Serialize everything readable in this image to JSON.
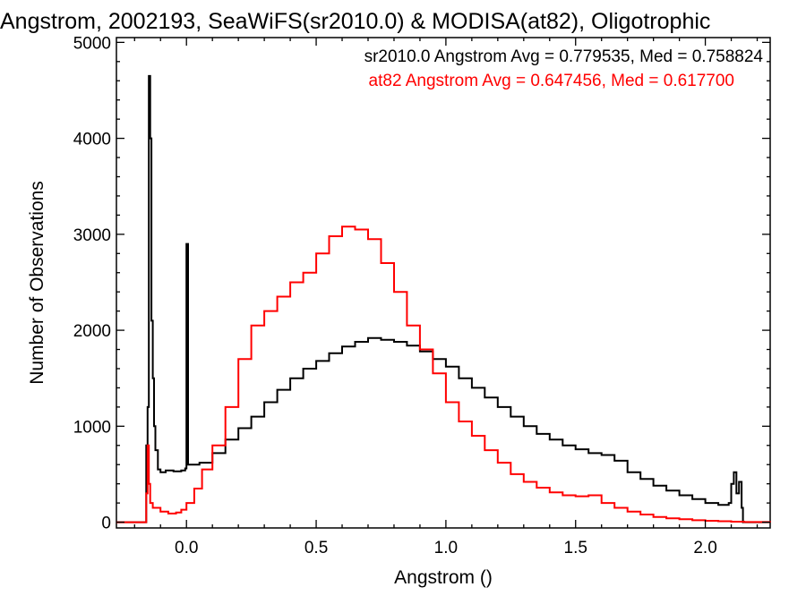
{
  "chart_data": {
    "type": "line",
    "style": "histogram-step",
    "title": "Angstrom, 2002193, SeaWiFS(sr2010.0) & MODISA(at82), Oligotrophic",
    "xlabel": "Angstrom ()",
    "ylabel": "Number of Observations",
    "xlim": [
      -0.27,
      2.25
    ],
    "ylim": [
      -60,
      5050
    ],
    "xticks": [
      0.0,
      0.5,
      1.0,
      1.5,
      2.0
    ],
    "xtick_labels": [
      "0.0",
      "0.5",
      "1.0",
      "1.5",
      "2.0"
    ],
    "yticks": [
      0,
      1000,
      2000,
      3000,
      4000,
      5000
    ],
    "ytick_labels": [
      "0",
      "1000",
      "2000",
      "3000",
      "4000",
      "5000"
    ],
    "grid": false,
    "legend_position": "top-right",
    "annotations": [
      {
        "text": "sr2010.0 Angstrom Avg = 0.779535, Med = 0.758824",
        "color": "#000000"
      },
      {
        "text": "at82 Angstrom Avg = 0.647456, Med = 0.617700",
        "color": "#ff0000"
      }
    ],
    "series": [
      {
        "name": "sr2010.0",
        "color": "#000000",
        "points": [
          [
            -0.27,
            0
          ],
          [
            -0.16,
            0
          ],
          [
            -0.155,
            800
          ],
          [
            -0.15,
            1200
          ],
          [
            -0.145,
            4650
          ],
          [
            -0.14,
            4000
          ],
          [
            -0.135,
            2100
          ],
          [
            -0.13,
            1500
          ],
          [
            -0.125,
            1000
          ],
          [
            -0.12,
            750
          ],
          [
            -0.11,
            550
          ],
          [
            -0.1,
            520
          ],
          [
            -0.08,
            540
          ],
          [
            -0.05,
            530
          ],
          [
            -0.02,
            540
          ],
          [
            -0.005,
            560
          ],
          [
            0.0,
            2900
          ],
          [
            0.006,
            600
          ],
          [
            0.05,
            620
          ],
          [
            0.1,
            720
          ],
          [
            0.15,
            860
          ],
          [
            0.2,
            980
          ],
          [
            0.25,
            1100
          ],
          [
            0.3,
            1250
          ],
          [
            0.35,
            1380
          ],
          [
            0.4,
            1500
          ],
          [
            0.45,
            1600
          ],
          [
            0.5,
            1680
          ],
          [
            0.55,
            1760
          ],
          [
            0.6,
            1830
          ],
          [
            0.65,
            1880
          ],
          [
            0.7,
            1920
          ],
          [
            0.75,
            1900
          ],
          [
            0.8,
            1880
          ],
          [
            0.85,
            1840
          ],
          [
            0.9,
            1780
          ],
          [
            0.95,
            1700
          ],
          [
            1.0,
            1620
          ],
          [
            1.05,
            1500
          ],
          [
            1.1,
            1400
          ],
          [
            1.15,
            1300
          ],
          [
            1.2,
            1200
          ],
          [
            1.25,
            1100
          ],
          [
            1.3,
            1000
          ],
          [
            1.35,
            920
          ],
          [
            1.4,
            860
          ],
          [
            1.45,
            800
          ],
          [
            1.5,
            760
          ],
          [
            1.55,
            720
          ],
          [
            1.6,
            700
          ],
          [
            1.65,
            640
          ],
          [
            1.7,
            520
          ],
          [
            1.75,
            450
          ],
          [
            1.8,
            380
          ],
          [
            1.85,
            330
          ],
          [
            1.9,
            280
          ],
          [
            1.95,
            240
          ],
          [
            2.0,
            200
          ],
          [
            2.05,
            180
          ],
          [
            2.09,
            200
          ],
          [
            2.1,
            400
          ],
          [
            2.11,
            520
          ],
          [
            2.12,
            300
          ],
          [
            2.13,
            420
          ],
          [
            2.14,
            150
          ],
          [
            2.145,
            0
          ],
          [
            2.25,
            0
          ]
        ]
      },
      {
        "name": "at82",
        "color": "#ff0000",
        "points": [
          [
            -0.27,
            0
          ],
          [
            -0.16,
            0
          ],
          [
            -0.155,
            300
          ],
          [
            -0.15,
            800
          ],
          [
            -0.145,
            400
          ],
          [
            -0.14,
            200
          ],
          [
            -0.13,
            150
          ],
          [
            -0.1,
            110
          ],
          [
            -0.07,
            90
          ],
          [
            -0.04,
            100
          ],
          [
            -0.02,
            130
          ],
          [
            0.0,
            200
          ],
          [
            0.03,
            350
          ],
          [
            0.06,
            550
          ],
          [
            0.1,
            800
          ],
          [
            0.15,
            1200
          ],
          [
            0.2,
            1700
          ],
          [
            0.25,
            2050
          ],
          [
            0.3,
            2200
          ],
          [
            0.35,
            2350
          ],
          [
            0.4,
            2500
          ],
          [
            0.45,
            2600
          ],
          [
            0.5,
            2800
          ],
          [
            0.55,
            2980
          ],
          [
            0.6,
            3080
          ],
          [
            0.65,
            3050
          ],
          [
            0.7,
            2950
          ],
          [
            0.75,
            2700
          ],
          [
            0.8,
            2400
          ],
          [
            0.85,
            2050
          ],
          [
            0.9,
            1800
          ],
          [
            0.95,
            1550
          ],
          [
            1.0,
            1250
          ],
          [
            1.05,
            1050
          ],
          [
            1.1,
            900
          ],
          [
            1.15,
            750
          ],
          [
            1.2,
            620
          ],
          [
            1.25,
            500
          ],
          [
            1.3,
            420
          ],
          [
            1.35,
            360
          ],
          [
            1.4,
            310
          ],
          [
            1.45,
            280
          ],
          [
            1.5,
            270
          ],
          [
            1.55,
            280
          ],
          [
            1.6,
            200
          ],
          [
            1.65,
            150
          ],
          [
            1.7,
            110
          ],
          [
            1.75,
            80
          ],
          [
            1.8,
            55
          ],
          [
            1.85,
            40
          ],
          [
            1.9,
            30
          ],
          [
            1.95,
            20
          ],
          [
            2.0,
            15
          ],
          [
            2.05,
            10
          ],
          [
            2.1,
            5
          ],
          [
            2.15,
            2
          ],
          [
            2.25,
            0
          ]
        ]
      }
    ]
  }
}
